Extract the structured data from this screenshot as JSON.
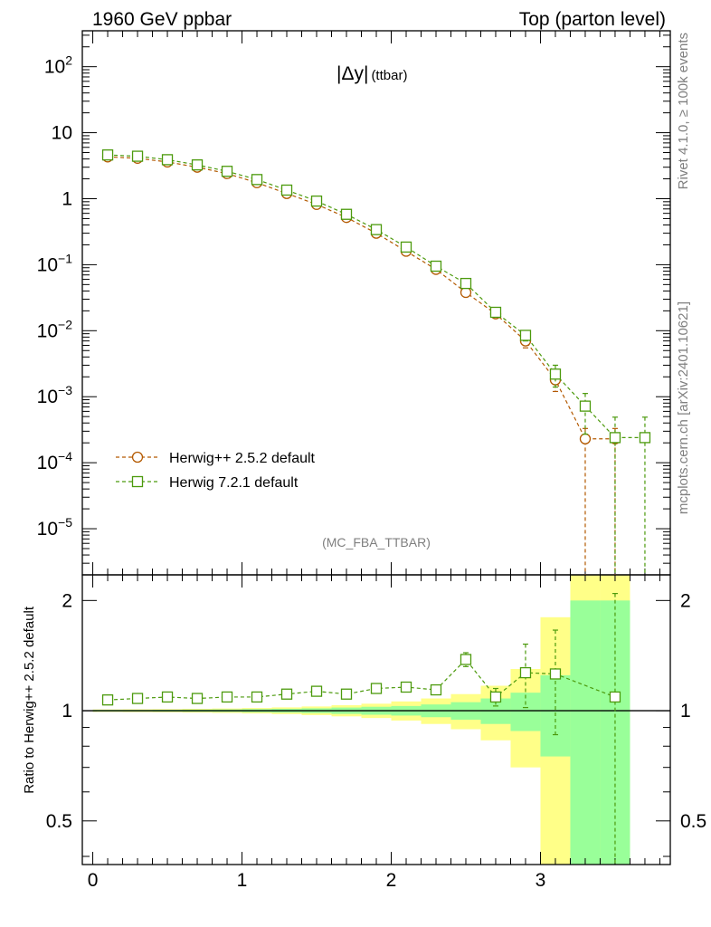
{
  "header": {
    "left": "1960 GeV ppbar",
    "right": "Top (parton level)"
  },
  "side_labels": {
    "top": "Rivet 4.1.0, ≥ 100k events",
    "bottom": "mcplots.cern.ch [arXiv:2401.10621]"
  },
  "analysis_tag": "(MC_FBA_TTBAR)",
  "chart_data": [
    {
      "type": "line",
      "panel": "main",
      "title": "|Δy| (ttbar)",
      "title_main": "|Δy|",
      "title_sub": "(ttbar)",
      "yscale": "log",
      "ylim": [
        2e-06,
        350
      ],
      "xlim": [
        -0.07,
        3.87
      ],
      "ytick_labels": [
        {
          "base": "10",
          "exp": "2",
          "value": 100
        },
        {
          "base": "10",
          "exp": "",
          "value": 10
        },
        {
          "base": "1",
          "exp": "",
          "value": 1
        },
        {
          "base": "10",
          "exp": "−1",
          "value": 0.1
        },
        {
          "base": "10",
          "exp": "−2",
          "value": 0.01
        },
        {
          "base": "10",
          "exp": "−3",
          "value": 0.001
        },
        {
          "base": "10",
          "exp": "−4",
          "value": 0.0001
        },
        {
          "base": "10",
          "exp": "−5",
          "value": 1e-05
        }
      ],
      "legend_position": "bottom-left",
      "series": [
        {
          "name": "Herwig++ 2.5.2 default",
          "color": "#b35900",
          "marker": "circle",
          "x": [
            0.1,
            0.3,
            0.5,
            0.7,
            0.9,
            1.1,
            1.3,
            1.5,
            1.7,
            1.9,
            2.1,
            2.3,
            2.5,
            2.7,
            2.9,
            3.1,
            3.3,
            3.5
          ],
          "y": [
            4.3,
            4.1,
            3.6,
            3.0,
            2.4,
            1.75,
            1.2,
            0.82,
            0.52,
            0.3,
            0.16,
            0.085,
            0.038,
            0.018,
            0.007,
            0.0018,
            0.00023,
            0.00023
          ],
          "err_lo": [
            0,
            0,
            0,
            0,
            0,
            0,
            0,
            0,
            0,
            0,
            0,
            0,
            0,
            0,
            0.0015,
            0.0006,
            0.00023,
            0.00023
          ],
          "err_hi": [
            0,
            0,
            0,
            0,
            0,
            0,
            0,
            0,
            0,
            0,
            0,
            0,
            0,
            0,
            0.0015,
            0.0006,
            0.0001,
            0.0001
          ]
        },
        {
          "name": "Herwig 7.2.1 default",
          "color": "#4c9a0d",
          "marker": "square",
          "x": [
            0.1,
            0.3,
            0.5,
            0.7,
            0.9,
            1.1,
            1.3,
            1.5,
            1.7,
            1.9,
            2.1,
            2.3,
            2.5,
            2.7,
            2.9,
            3.1,
            3.3,
            3.5,
            3.7
          ],
          "y": [
            4.6,
            4.4,
            3.9,
            3.25,
            2.6,
            1.95,
            1.35,
            0.92,
            0.58,
            0.34,
            0.185,
            0.095,
            0.052,
            0.019,
            0.0085,
            0.0022,
            0.00072,
            0.00024,
            0.00024
          ],
          "err_lo": [
            0,
            0,
            0,
            0,
            0,
            0,
            0,
            0,
            0,
            0,
            0,
            0,
            0,
            0,
            0.0015,
            0.0008,
            0.00045,
            0.00024,
            0.00024
          ],
          "err_hi": [
            0,
            0,
            0,
            0,
            0,
            0,
            0,
            0,
            0,
            0,
            0,
            0,
            0,
            0,
            0.0015,
            0.0008,
            0.0004,
            0.00025,
            0.00025
          ]
        }
      ]
    },
    {
      "type": "line",
      "panel": "ratio",
      "ylabel": "Ratio to Herwig++ 2.5.2 default",
      "xlabel": "",
      "yscale": "log",
      "ylim": [
        0.38,
        2.35
      ],
      "xlim": [
        -0.07,
        3.87
      ],
      "yticks": [
        0.5,
        1,
        2
      ],
      "ytick_labels": [
        "0.5",
        "1",
        "2"
      ],
      "xticks": [
        0,
        1,
        2,
        3
      ],
      "xtick_labels": [
        "0",
        "1",
        "2",
        "3"
      ],
      "reference_line": 1,
      "bands": {
        "bin_edges": [
          0,
          0.2,
          0.4,
          0.6,
          0.8,
          1.0,
          1.2,
          1.4,
          1.6,
          1.8,
          2.0,
          2.2,
          2.4,
          2.6,
          2.8,
          3.0,
          3.2,
          3.4,
          3.6
        ],
        "green_half_width": [
          0.005,
          0.005,
          0.006,
          0.007,
          0.008,
          0.01,
          0.012,
          0.015,
          0.02,
          0.025,
          0.03,
          0.04,
          0.055,
          0.08,
          0.12,
          0.25,
          1.0,
          1.0
        ],
        "yellow_half_width": [
          0.008,
          0.009,
          0.01,
          0.012,
          0.014,
          0.017,
          0.021,
          0.027,
          0.035,
          0.045,
          0.06,
          0.08,
          0.11,
          0.17,
          0.3,
          0.8,
          2.0,
          2.0
        ],
        "green_color": "#99ff99",
        "yellow_color": "#ffff88"
      },
      "series": [
        {
          "name": "Herwig 7.2.1 / Herwig++ 2.5.2",
          "color": "#4c9a0d",
          "marker": "square",
          "x": [
            0.1,
            0.3,
            0.5,
            0.7,
            0.9,
            1.1,
            1.3,
            1.5,
            1.7,
            1.9,
            2.1,
            2.3,
            2.5,
            2.7,
            2.9,
            3.1,
            3.5
          ],
          "y": [
            1.07,
            1.08,
            1.09,
            1.08,
            1.09,
            1.09,
            1.11,
            1.13,
            1.11,
            1.15,
            1.16,
            1.14,
            1.38,
            1.09,
            1.27,
            1.26,
            1.09
          ],
          "err_lo": [
            0,
            0,
            0,
            0,
            0,
            0,
            0,
            0.02,
            0,
            0.02,
            0.03,
            0.03,
            0.06,
            0.06,
            0.25,
            0.4,
            1.0
          ],
          "err_hi": [
            0,
            0,
            0,
            0,
            0,
            0,
            0,
            0.02,
            0,
            0.02,
            0.03,
            0.03,
            0.06,
            0.06,
            0.25,
            0.4,
            1.0
          ]
        }
      ]
    }
  ]
}
